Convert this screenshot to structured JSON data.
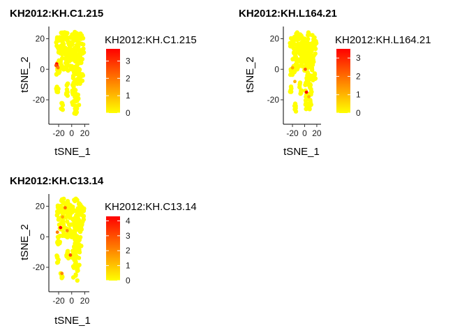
{
  "figure_bg": "#ffffff",
  "colors": {
    "low": "#FFFF00",
    "high": "#FF0000"
  },
  "chart_data": [
    {
      "type": "scatter",
      "title": "KH2012:KH.C1.215",
      "xlabel": "tSNE_1",
      "ylabel": "tSNE_2",
      "xlim": [
        -35,
        27
      ],
      "ylim": [
        -36,
        28
      ],
      "xticks": [
        -20,
        0,
        20
      ],
      "xtick_labels": [
        "-20",
        "0",
        "20"
      ],
      "yticks": [
        20,
        0,
        -20
      ],
      "legend": {
        "title": "KH2012:KH.C1.215",
        "min": 0,
        "max": 3.7,
        "ticks": [
          3,
          2,
          1,
          0
        ]
      },
      "grid": false,
      "highlights": [
        {
          "x": -23,
          "y": 3.5,
          "value": 3.7
        },
        {
          "x": -22,
          "y": 2,
          "value": 3.2
        },
        {
          "x": -24,
          "y": 2.5,
          "value": 2.6
        },
        {
          "x": -21,
          "y": 1,
          "value": 1.8
        }
      ]
    },
    {
      "type": "scatter",
      "title": "KH2012:KH.L164.21",
      "xlabel": "tSNE_1",
      "ylabel": "tSNE_2",
      "xlim": [
        -35,
        27
      ],
      "ylim": [
        -36,
        28
      ],
      "xticks": [
        -20,
        0,
        20
      ],
      "xtick_labels": [
        "-20",
        "0",
        "20"
      ],
      "yticks": [
        20,
        0,
        -20
      ],
      "legend": {
        "title": "KH2012:KH.L164.21",
        "min": 0,
        "max": 3.5,
        "ticks": [
          3,
          2,
          1,
          0
        ]
      },
      "grid": false,
      "highlights": [
        {
          "x": 1,
          "y": 0,
          "value": 2.2
        },
        {
          "x": -20,
          "y": 1,
          "value": 1.2
        },
        {
          "x": -16,
          "y": -8,
          "value": 1.0
        },
        {
          "x": 3,
          "y": -15,
          "value": 3.5
        },
        {
          "x": 7,
          "y": -18,
          "value": 0.9
        }
      ]
    },
    {
      "type": "scatter",
      "title": "KH2012:KH.C13.14",
      "xlabel": "tSNE_1",
      "ylabel": "tSNE_2",
      "xlim": [
        -35,
        27
      ],
      "ylim": [
        -36,
        28
      ],
      "xticks": [
        -20,
        0,
        20
      ],
      "xtick_labels": [
        "-20",
        "0",
        "20"
      ],
      "yticks": [
        20,
        0,
        -20
      ],
      "legend": {
        "title": "KH2012:KH.C13.14",
        "min": 0,
        "max": 4.3,
        "ticks": [
          4,
          3,
          2,
          1,
          0
        ]
      },
      "grid": false,
      "highlights": [
        {
          "x": -22,
          "y": 3,
          "value": 2.2
        },
        {
          "x": -17,
          "y": 6,
          "value": 4.3
        },
        {
          "x": -10,
          "y": 19,
          "value": 2.5
        },
        {
          "x": -7,
          "y": 4,
          "value": 1.9
        },
        {
          "x": -2,
          "y": -12,
          "value": 3.0
        },
        {
          "x": -15,
          "y": -24,
          "value": 2.0
        },
        {
          "x": -14,
          "y": 13,
          "value": 1.5
        }
      ]
    }
  ]
}
